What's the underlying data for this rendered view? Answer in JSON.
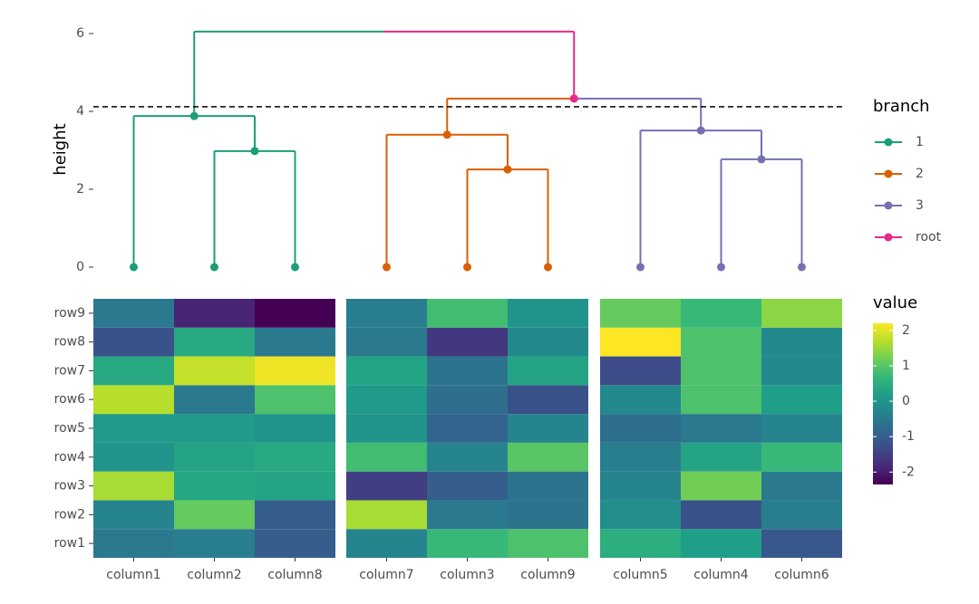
{
  "chart_data": [
    {
      "type": "dendrogram",
      "y_label": "height",
      "ylim": [
        -0.28,
        6.35
      ],
      "yticks": [
        0,
        2,
        4,
        6
      ],
      "cut_height": 4.12,
      "leaf_heights": [
        0,
        0,
        0,
        0,
        0,
        0,
        0,
        0,
        0
      ],
      "merges": [
        {
          "children": [
            1,
            2
          ],
          "height": 2.98,
          "branch": "1"
        },
        {
          "children": [
            0,
            9
          ],
          "height": 3.88,
          "branch": "1"
        },
        {
          "children": [
            4,
            5
          ],
          "height": 2.51,
          "branch": "2"
        },
        {
          "children": [
            3,
            11
          ],
          "height": 3.4,
          "branch": "2"
        },
        {
          "children": [
            7,
            8
          ],
          "height": 2.77,
          "branch": "3"
        },
        {
          "children": [
            6,
            13
          ],
          "height": 3.51,
          "branch": "3"
        },
        {
          "children": [
            12,
            14
          ],
          "height": 4.33,
          "branch": "root"
        },
        {
          "children": [
            10,
            15
          ],
          "height": 6.05,
          "branch": "root"
        }
      ],
      "legend": {
        "title": "branch",
        "items": [
          {
            "name": "1",
            "color": "#1b9e77"
          },
          {
            "name": "2",
            "color": "#d95f02"
          },
          {
            "name": "3",
            "color": "#7570b3"
          },
          {
            "name": "root",
            "color": "#e7298a"
          }
        ]
      }
    },
    {
      "type": "heatmap",
      "rows": [
        "row1",
        "row2",
        "row3",
        "row4",
        "row5",
        "row6",
        "row7",
        "row8",
        "row9"
      ],
      "panels": [
        {
          "columns": [
            "column1",
            "column2",
            "column8"
          ],
          "values": [
            [
              -0.5,
              -0.4,
              -1.0
            ],
            [
              -0.3,
              1.1,
              -1.0
            ],
            [
              1.6,
              0.35,
              0.3
            ],
            [
              0.0,
              0.3,
              0.4
            ],
            [
              0.1,
              0.1,
              0.0
            ],
            [
              1.7,
              -0.5,
              0.9
            ],
            [
              0.4,
              1.8,
              2.1
            ],
            [
              -1.2,
              0.4,
              -0.5
            ],
            [
              -0.5,
              -1.9,
              -2.35
            ]
          ]
        },
        {
          "columns": [
            "column7",
            "column3",
            "column9"
          ],
          "values": [
            [
              -0.3,
              0.7,
              0.9
            ],
            [
              1.6,
              -0.5,
              -0.6
            ],
            [
              -1.5,
              -1.0,
              -0.6
            ],
            [
              0.8,
              -0.3,
              1.0
            ],
            [
              0.0,
              -0.9,
              -0.3
            ],
            [
              0.1,
              -0.7,
              -1.2
            ],
            [
              0.3,
              -0.6,
              0.3
            ],
            [
              -0.5,
              -1.6,
              -0.2
            ],
            [
              -0.4,
              0.8,
              0.0
            ]
          ]
        },
        {
          "columns": [
            "column5",
            "column4",
            "column6"
          ],
          "values": [
            [
              0.5,
              0.2,
              -1.1
            ],
            [
              -0.1,
              -1.2,
              -0.4
            ],
            [
              -0.3,
              1.2,
              -0.5
            ],
            [
              -0.4,
              0.3,
              0.7
            ],
            [
              -0.7,
              -0.5,
              -0.3
            ],
            [
              -0.2,
              0.9,
              0.2
            ],
            [
              -1.3,
              0.9,
              -0.2
            ],
            [
              2.2,
              0.9,
              -0.2
            ],
            [
              1.1,
              0.7,
              1.4
            ]
          ]
        }
      ],
      "legend": {
        "title": "value",
        "colorscale": "viridis",
        "limits": [
          -2.35,
          2.2
        ],
        "ticks": [
          -2,
          -1,
          0,
          1,
          2
        ]
      }
    }
  ]
}
